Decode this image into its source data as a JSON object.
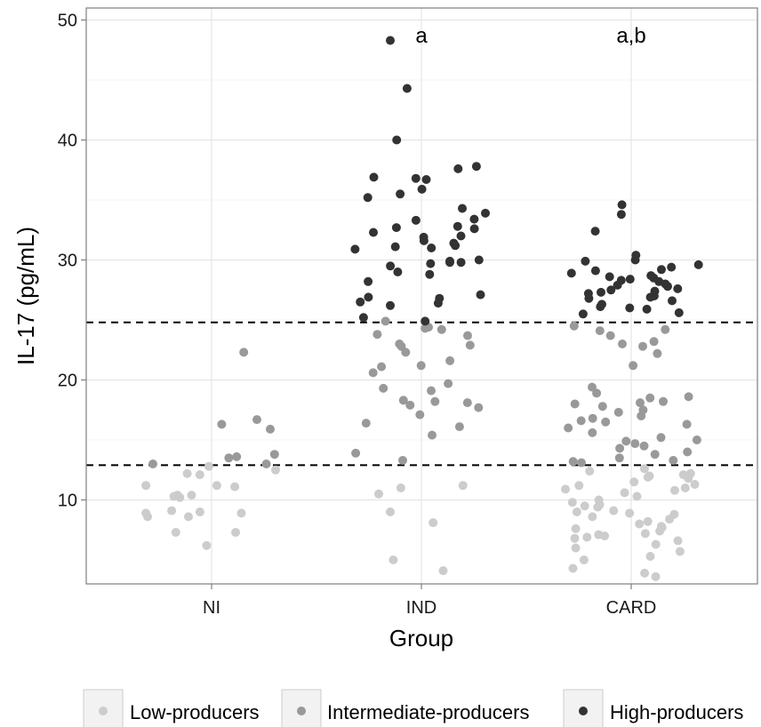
{
  "chart_data": {
    "type": "scatter",
    "xlabel": "Group",
    "ylabel": "IL-17 (pg/mL)",
    "categories": [
      "NI",
      "IND",
      "CARD"
    ],
    "ylim": [
      3,
      51
    ],
    "yticks": [
      10,
      20,
      30,
      40,
      50
    ],
    "grid": true,
    "reference_lines": [
      12.9,
      24.8
    ],
    "annotations": [
      {
        "category": "IND",
        "text": "a"
      },
      {
        "category": "CARD",
        "text": "a,b"
      }
    ],
    "legend": {
      "position": "bottom",
      "entries": [
        {
          "name": "Low-producers",
          "color": "#cccccc"
        },
        {
          "name": "Intermediate-producers",
          "color": "#999999"
        },
        {
          "name": "High-producers",
          "color": "#333333"
        }
      ]
    },
    "series": [
      {
        "name": "Low-producers",
        "color": "#cccccc",
        "points": [
          {
            "x": "NI",
            "y": 12.1
          },
          {
            "x": "NI",
            "y": 11.2
          },
          {
            "x": "NI",
            "y": 10.4
          },
          {
            "x": "NI",
            "y": 10.3
          },
          {
            "x": "NI",
            "y": 10.2
          },
          {
            "x": "NI",
            "y": 9.1
          },
          {
            "x": "NI",
            "y": 8.9
          },
          {
            "x": "NI",
            "y": 8.9
          },
          {
            "x": "NI",
            "y": 8.6
          },
          {
            "x": "NI",
            "y": 8.6
          },
          {
            "x": "NI",
            "y": 7.3
          },
          {
            "x": "NI",
            "y": 7.3
          },
          {
            "x": "NI",
            "y": 6.2
          },
          {
            "x": "NI",
            "y": 11.1
          },
          {
            "x": "NI",
            "y": 10.4
          },
          {
            "x": "NI",
            "y": 11.2
          },
          {
            "x": "NI",
            "y": 9.0
          },
          {
            "x": "NI",
            "y": 12.8
          },
          {
            "x": "NI",
            "y": 12.5
          },
          {
            "x": "NI",
            "y": 12.2
          },
          {
            "x": "IND",
            "y": 11.0
          },
          {
            "x": "IND",
            "y": 10.5
          },
          {
            "x": "IND",
            "y": 11.2
          },
          {
            "x": "IND",
            "y": 9.0
          },
          {
            "x": "IND",
            "y": 8.1
          },
          {
            "x": "IND",
            "y": 5.0
          },
          {
            "x": "IND",
            "y": 4.1
          },
          {
            "x": "CARD",
            "y": 12.6
          },
          {
            "x": "CARD",
            "y": 12.4
          },
          {
            "x": "CARD",
            "y": 12.2
          },
          {
            "x": "CARD",
            "y": 12.0
          },
          {
            "x": "CARD",
            "y": 11.8
          },
          {
            "x": "CARD",
            "y": 11.5
          },
          {
            "x": "CARD",
            "y": 11.2
          },
          {
            "x": "CARD",
            "y": 11.0
          },
          {
            "x": "CARD",
            "y": 10.8
          },
          {
            "x": "CARD",
            "y": 10.6
          },
          {
            "x": "CARD",
            "y": 10.3
          },
          {
            "x": "CARD",
            "y": 10.0
          },
          {
            "x": "CARD",
            "y": 9.8
          },
          {
            "x": "CARD",
            "y": 9.6
          },
          {
            "x": "CARD",
            "y": 9.4
          },
          {
            "x": "CARD",
            "y": 9.1
          },
          {
            "x": "CARD",
            "y": 8.9
          },
          {
            "x": "CARD",
            "y": 8.6
          },
          {
            "x": "CARD",
            "y": 8.4
          },
          {
            "x": "CARD",
            "y": 8.2
          },
          {
            "x": "CARD",
            "y": 8.0
          },
          {
            "x": "CARD",
            "y": 7.8
          },
          {
            "x": "CARD",
            "y": 7.6
          },
          {
            "x": "CARD",
            "y": 7.4
          },
          {
            "x": "CARD",
            "y": 7.2
          },
          {
            "x": "CARD",
            "y": 7.0
          },
          {
            "x": "CARD",
            "y": 6.8
          },
          {
            "x": "CARD",
            "y": 6.6
          },
          {
            "x": "CARD",
            "y": 6.3
          },
          {
            "x": "CARD",
            "y": 6.0
          },
          {
            "x": "CARD",
            "y": 5.7
          },
          {
            "x": "CARD",
            "y": 5.3
          },
          {
            "x": "CARD",
            "y": 5.0
          },
          {
            "x": "CARD",
            "y": 4.3
          },
          {
            "x": "CARD",
            "y": 3.9
          },
          {
            "x": "CARD",
            "y": 3.6
          },
          {
            "x": "CARD",
            "y": 12.1
          },
          {
            "x": "CARD",
            "y": 11.3
          },
          {
            "x": "CARD",
            "y": 9.0
          },
          {
            "x": "CARD",
            "y": 7.7
          },
          {
            "x": "CARD",
            "y": 6.9
          },
          {
            "x": "CARD",
            "y": 8.8
          },
          {
            "x": "CARD",
            "y": 10.9
          },
          {
            "x": "CARD",
            "y": 11.9
          },
          {
            "x": "CARD",
            "y": 7.1
          },
          {
            "x": "CARD",
            "y": 9.5
          }
        ]
      },
      {
        "name": "Intermediate-producers",
        "color": "#999999",
        "points": [
          {
            "x": "NI",
            "y": 22.3
          },
          {
            "x": "NI",
            "y": 16.7
          },
          {
            "x": "NI",
            "y": 16.3
          },
          {
            "x": "NI",
            "y": 15.9
          },
          {
            "x": "NI",
            "y": 13.8
          },
          {
            "x": "NI",
            "y": 13.6
          },
          {
            "x": "NI",
            "y": 13.5
          },
          {
            "x": "NI",
            "y": 13.0
          },
          {
            "x": "NI",
            "y": 13.0
          },
          {
            "x": "IND",
            "y": 24.9
          },
          {
            "x": "IND",
            "y": 24.4
          },
          {
            "x": "IND",
            "y": 24.2
          },
          {
            "x": "IND",
            "y": 23.8
          },
          {
            "x": "IND",
            "y": 23.7
          },
          {
            "x": "IND",
            "y": 23.0
          },
          {
            "x": "IND",
            "y": 22.9
          },
          {
            "x": "IND",
            "y": 22.8
          },
          {
            "x": "IND",
            "y": 22.3
          },
          {
            "x": "IND",
            "y": 21.6
          },
          {
            "x": "IND",
            "y": 21.2
          },
          {
            "x": "IND",
            "y": 21.1
          },
          {
            "x": "IND",
            "y": 20.6
          },
          {
            "x": "IND",
            "y": 19.7
          },
          {
            "x": "IND",
            "y": 19.3
          },
          {
            "x": "IND",
            "y": 19.1
          },
          {
            "x": "IND",
            "y": 18.3
          },
          {
            "x": "IND",
            "y": 18.1
          },
          {
            "x": "IND",
            "y": 17.9
          },
          {
            "x": "IND",
            "y": 17.7
          },
          {
            "x": "IND",
            "y": 17.1
          },
          {
            "x": "IND",
            "y": 16.4
          },
          {
            "x": "IND",
            "y": 16.1
          },
          {
            "x": "IND",
            "y": 15.4
          },
          {
            "x": "IND",
            "y": 13.9
          },
          {
            "x": "IND",
            "y": 13.3
          },
          {
            "x": "IND",
            "y": 24.3
          },
          {
            "x": "IND",
            "y": 18.2
          },
          {
            "x": "CARD",
            "y": 24.5
          },
          {
            "x": "CARD",
            "y": 24.2
          },
          {
            "x": "CARD",
            "y": 24.1
          },
          {
            "x": "CARD",
            "y": 23.7
          },
          {
            "x": "CARD",
            "y": 23.2
          },
          {
            "x": "CARD",
            "y": 23.0
          },
          {
            "x": "CARD",
            "y": 22.8
          },
          {
            "x": "CARD",
            "y": 22.2
          },
          {
            "x": "CARD",
            "y": 21.2
          },
          {
            "x": "CARD",
            "y": 19.4
          },
          {
            "x": "CARD",
            "y": 18.9
          },
          {
            "x": "CARD",
            "y": 18.6
          },
          {
            "x": "CARD",
            "y": 18.5
          },
          {
            "x": "CARD",
            "y": 18.2
          },
          {
            "x": "CARD",
            "y": 18.0
          },
          {
            "x": "CARD",
            "y": 17.8
          },
          {
            "x": "CARD",
            "y": 17.5
          },
          {
            "x": "CARD",
            "y": 17.3
          },
          {
            "x": "CARD",
            "y": 17.0
          },
          {
            "x": "CARD",
            "y": 16.8
          },
          {
            "x": "CARD",
            "y": 16.5
          },
          {
            "x": "CARD",
            "y": 16.3
          },
          {
            "x": "CARD",
            "y": 16.0
          },
          {
            "x": "CARD",
            "y": 15.6
          },
          {
            "x": "CARD",
            "y": 15.2
          },
          {
            "x": "CARD",
            "y": 14.9
          },
          {
            "x": "CARD",
            "y": 14.7
          },
          {
            "x": "CARD",
            "y": 14.3
          },
          {
            "x": "CARD",
            "y": 14.0
          },
          {
            "x": "CARD",
            "y": 13.8
          },
          {
            "x": "CARD",
            "y": 13.5
          },
          {
            "x": "CARD",
            "y": 13.3
          },
          {
            "x": "CARD",
            "y": 13.2
          },
          {
            "x": "CARD",
            "y": 13.1
          },
          {
            "x": "CARD",
            "y": 18.1
          },
          {
            "x": "CARD",
            "y": 16.6
          },
          {
            "x": "CARD",
            "y": 15.0
          },
          {
            "x": "CARD",
            "y": 14.5
          }
        ]
      },
      {
        "name": "High-producers",
        "color": "#333333",
        "points": [
          {
            "x": "IND",
            "y": 48.3
          },
          {
            "x": "IND",
            "y": 44.3
          },
          {
            "x": "IND",
            "y": 40.0
          },
          {
            "x": "IND",
            "y": 37.8
          },
          {
            "x": "IND",
            "y": 37.6
          },
          {
            "x": "IND",
            "y": 36.9
          },
          {
            "x": "IND",
            "y": 36.8
          },
          {
            "x": "IND",
            "y": 36.7
          },
          {
            "x": "IND",
            "y": 35.9
          },
          {
            "x": "IND",
            "y": 35.5
          },
          {
            "x": "IND",
            "y": 35.2
          },
          {
            "x": "IND",
            "y": 34.3
          },
          {
            "x": "IND",
            "y": 33.9
          },
          {
            "x": "IND",
            "y": 33.4
          },
          {
            "x": "IND",
            "y": 33.3
          },
          {
            "x": "IND",
            "y": 32.8
          },
          {
            "x": "IND",
            "y": 32.7
          },
          {
            "x": "IND",
            "y": 32.6
          },
          {
            "x": "IND",
            "y": 32.3
          },
          {
            "x": "IND",
            "y": 32.0
          },
          {
            "x": "IND",
            "y": 31.9
          },
          {
            "x": "IND",
            "y": 31.6
          },
          {
            "x": "IND",
            "y": 31.4
          },
          {
            "x": "IND",
            "y": 31.2
          },
          {
            "x": "IND",
            "y": 31.1
          },
          {
            "x": "IND",
            "y": 31.0
          },
          {
            "x": "IND",
            "y": 30.9
          },
          {
            "x": "IND",
            "y": 30.0
          },
          {
            "x": "IND",
            "y": 29.9
          },
          {
            "x": "IND",
            "y": 29.8
          },
          {
            "x": "IND",
            "y": 29.8
          },
          {
            "x": "IND",
            "y": 29.7
          },
          {
            "x": "IND",
            "y": 29.5
          },
          {
            "x": "IND",
            "y": 29.0
          },
          {
            "x": "IND",
            "y": 28.8
          },
          {
            "x": "IND",
            "y": 28.2
          },
          {
            "x": "IND",
            "y": 27.1
          },
          {
            "x": "IND",
            "y": 26.9
          },
          {
            "x": "IND",
            "y": 26.8
          },
          {
            "x": "IND",
            "y": 26.5
          },
          {
            "x": "IND",
            "y": 26.4
          },
          {
            "x": "IND",
            "y": 26.2
          },
          {
            "x": "IND",
            "y": 25.2
          },
          {
            "x": "IND",
            "y": 24.9
          },
          {
            "x": "CARD",
            "y": 34.6
          },
          {
            "x": "CARD",
            "y": 33.8
          },
          {
            "x": "CARD",
            "y": 32.4
          },
          {
            "x": "CARD",
            "y": 30.4
          },
          {
            "x": "CARD",
            "y": 30.0
          },
          {
            "x": "CARD",
            "y": 29.9
          },
          {
            "x": "CARD",
            "y": 29.6
          },
          {
            "x": "CARD",
            "y": 29.4
          },
          {
            "x": "CARD",
            "y": 29.2
          },
          {
            "x": "CARD",
            "y": 29.1
          },
          {
            "x": "CARD",
            "y": 28.7
          },
          {
            "x": "CARD",
            "y": 28.6
          },
          {
            "x": "CARD",
            "y": 28.5
          },
          {
            "x": "CARD",
            "y": 28.4
          },
          {
            "x": "CARD",
            "y": 28.3
          },
          {
            "x": "CARD",
            "y": 28.2
          },
          {
            "x": "CARD",
            "y": 28.0
          },
          {
            "x": "CARD",
            "y": 27.9
          },
          {
            "x": "CARD",
            "y": 27.8
          },
          {
            "x": "CARD",
            "y": 27.6
          },
          {
            "x": "CARD",
            "y": 27.4
          },
          {
            "x": "CARD",
            "y": 27.3
          },
          {
            "x": "CARD",
            "y": 27.2
          },
          {
            "x": "CARD",
            "y": 27.0
          },
          {
            "x": "CARD",
            "y": 26.9
          },
          {
            "x": "CARD",
            "y": 26.8
          },
          {
            "x": "CARD",
            "y": 26.6
          },
          {
            "x": "CARD",
            "y": 26.3
          },
          {
            "x": "CARD",
            "y": 26.1
          },
          {
            "x": "CARD",
            "y": 26.0
          },
          {
            "x": "CARD",
            "y": 25.9
          },
          {
            "x": "CARD",
            "y": 25.6
          },
          {
            "x": "CARD",
            "y": 25.5
          },
          {
            "x": "CARD",
            "y": 28.9
          },
          {
            "x": "CARD",
            "y": 27.5
          }
        ]
      }
    ]
  }
}
